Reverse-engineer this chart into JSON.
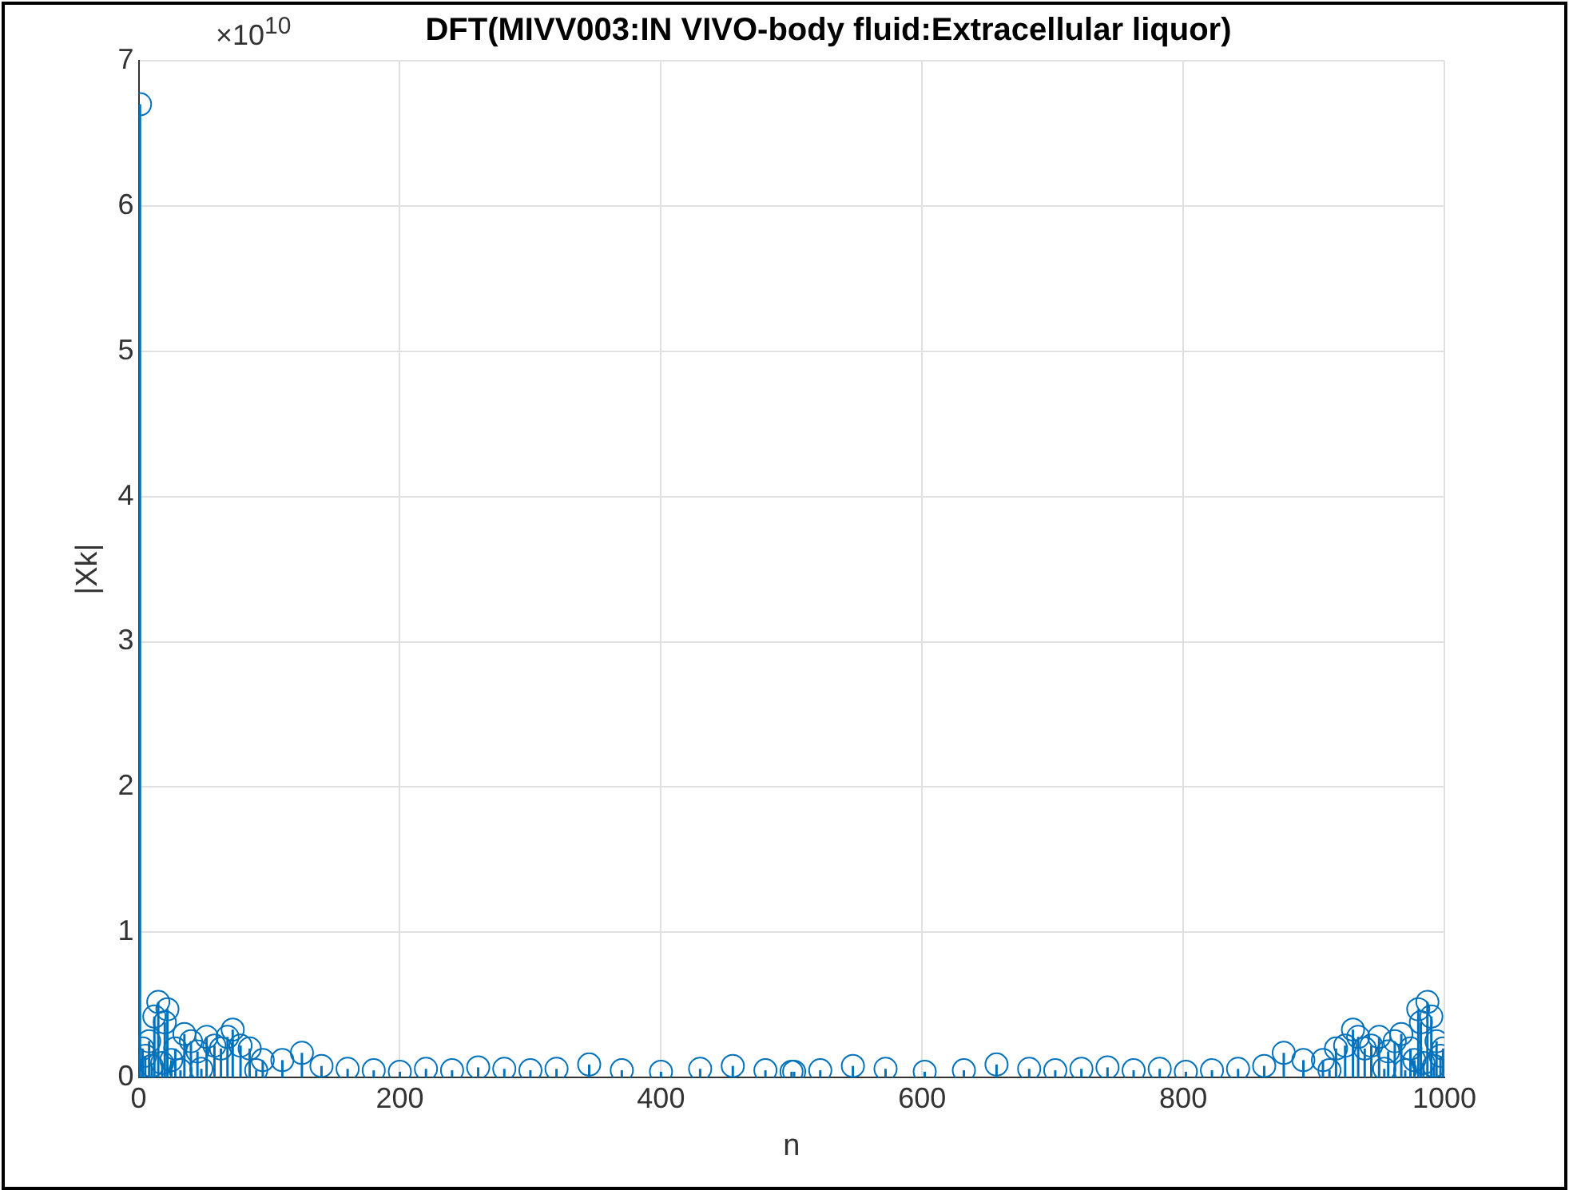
{
  "chart_data": {
    "type": "lollipop",
    "title": "DFT(MIVV003:IN VIVO-body fluid:Extracellular liquor)",
    "xlabel": "n",
    "ylabel": "|Xk|",
    "annotations": [
      "×10$^{10}$"
    ],
    "x": [
      1,
      3,
      5,
      8,
      10,
      12,
      15,
      18,
      20,
      22,
      25,
      28,
      32,
      35,
      40,
      45,
      48,
      52,
      58,
      63,
      68,
      72,
      78,
      85,
      90,
      95,
      110,
      125,
      140,
      160,
      180,
      200,
      220,
      240,
      260,
      280,
      300,
      320,
      345,
      370,
      400,
      430,
      455,
      480,
      500,
      502,
      522,
      547,
      572,
      602,
      632,
      657,
      682,
      702,
      722,
      742,
      762,
      782,
      802,
      822,
      842,
      862,
      877,
      892,
      907,
      912,
      917,
      924,
      930,
      934,
      939,
      944,
      950,
      954,
      957,
      962,
      967,
      970,
      974,
      977,
      980,
      982,
      984,
      987,
      990,
      992,
      994,
      997,
      999
    ],
    "values": [
      6.7,
      0.2,
      0.15,
      0.25,
      0.08,
      0.42,
      0.52,
      0.1,
      0.38,
      0.47,
      0.12,
      0.2,
      0.05,
      0.3,
      0.25,
      0.18,
      0.06,
      0.28,
      0.22,
      0.2,
      0.28,
      0.33,
      0.22,
      0.2,
      0.05,
      0.12,
      0.12,
      0.17,
      0.08,
      0.06,
      0.05,
      0.04,
      0.06,
      0.05,
      0.07,
      0.06,
      0.05,
      0.06,
      0.09,
      0.05,
      0.04,
      0.06,
      0.08,
      0.05,
      0.04,
      0.04,
      0.05,
      0.08,
      0.06,
      0.04,
      0.05,
      0.09,
      0.06,
      0.05,
      0.06,
      0.07,
      0.05,
      0.06,
      0.04,
      0.05,
      0.06,
      0.08,
      0.17,
      0.12,
      0.12,
      0.05,
      0.2,
      0.22,
      0.33,
      0.28,
      0.2,
      0.22,
      0.28,
      0.06,
      0.18,
      0.25,
      0.3,
      0.05,
      0.2,
      0.12,
      0.47,
      0.38,
      0.1,
      0.52,
      0.42,
      0.08,
      0.25,
      0.15,
      0.2
    ],
    "color": "#0072bd",
    "marker": "circle",
    "grid": true,
    "xlim": [
      0,
      1000
    ],
    "xticks": [
      0,
      200,
      400,
      600,
      800,
      1000
    ],
    "ylim": [
      0,
      7
    ],
    "yticks": [
      0,
      1,
      2,
      3,
      4,
      5,
      6,
      7
    ]
  }
}
